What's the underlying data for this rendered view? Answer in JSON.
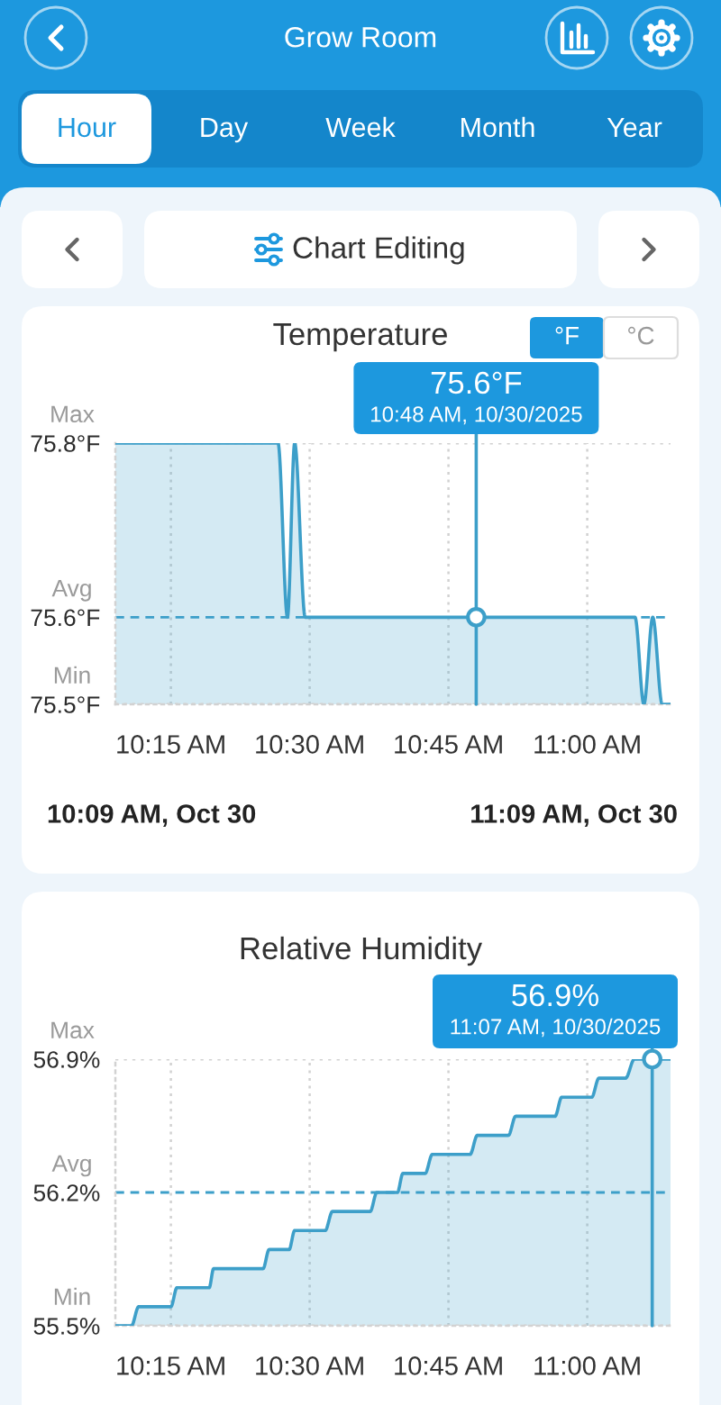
{
  "chart_data": [
    {
      "type": "other",
      "title": "Grow Room",
      "annotations": [
        "Hour",
        "Day",
        "Week",
        "Month",
        "Year",
        "Chart Editing"
      ]
    },
    {
      "type": "area",
      "title": "Temperature",
      "series": [
        {
          "type": "area",
          "color": "#3d9fc9",
          "x": [
            10.15,
            10.443,
            10.46,
            10.473,
            10.492,
            11.086,
            11.102,
            11.118,
            11.135,
            11.15
          ],
          "values": [
            75.8,
            75.8,
            75.6,
            75.8,
            75.6,
            75.6,
            75.5,
            75.6,
            75.5,
            75.5
          ]
        },
        {
          "type": "scatter",
          "color": "#3d9fc9",
          "marker": "circle",
          "x": [
            10.8
          ],
          "values": [
            75.6
          ]
        }
      ],
      "xlim": [
        10.15,
        11.15
      ],
      "xticks": [
        {
          "value": 10.25,
          "label": "10:15 AM"
        },
        {
          "value": 10.5,
          "label": "10:30 AM"
        },
        {
          "value": 10.75,
          "label": "10:45 AM"
        },
        {
          "value": 11.0,
          "label": "11:00 AM"
        }
      ],
      "ylim": [
        75.5,
        75.8
      ],
      "yticks": [
        {
          "value": 75.5,
          "label": "75.5°F"
        },
        {
          "value": 75.6,
          "label": "75.6°F"
        },
        {
          "value": 75.8,
          "label": "75.8°F"
        }
      ],
      "grid": "x",
      "ref_lines": [
        {
          "axis": "y",
          "value": 75.8,
          "label": "Max",
          "color": "#d2d2d2",
          "line_style": "dotted"
        },
        {
          "axis": "y",
          "value": 75.6,
          "label": "Avg",
          "color": "#3d9fc9",
          "line_style": "dashed"
        },
        {
          "axis": "y",
          "value": 75.5,
          "label": "Min",
          "color": "#d2d2d2",
          "line_style": "dotted"
        },
        {
          "axis": "x",
          "value": 10.8,
          "label": null,
          "color": "#3d9fc9",
          "line_style": "solid"
        }
      ],
      "annotations": [
        "75.6°F",
        "10:48 AM, 10/30/2025",
        "°F",
        "°C",
        "10:09 AM, Oct 30",
        "11:09 AM, Oct 30"
      ]
    },
    {
      "type": "area",
      "title": "Relative Humidity",
      "series": [
        {
          "type": "area",
          "color": "#3d9fc9",
          "x": [
            10.15,
            10.179,
            10.192,
            10.25,
            10.261,
            10.319,
            10.327,
            10.416,
            10.427,
            10.463,
            10.473,
            10.528,
            10.541,
            10.609,
            10.621,
            10.658,
            10.668,
            10.708,
            10.721,
            10.789,
            10.802,
            10.858,
            10.871,
            10.942,
            10.954,
            11.008,
            11.021,
            11.069,
            11.085,
            11.15
          ],
          "values": [
            55.5,
            55.5,
            55.6,
            55.6,
            55.7,
            55.7,
            55.8,
            55.8,
            55.9,
            55.9,
            56.0,
            56.0,
            56.1,
            56.1,
            56.2,
            56.2,
            56.3,
            56.3,
            56.4,
            56.4,
            56.5,
            56.5,
            56.6,
            56.6,
            56.7,
            56.7,
            56.8,
            56.8,
            56.9,
            56.9
          ]
        },
        {
          "type": "scatter",
          "color": "#3d9fc9",
          "marker": "circle",
          "x": [
            11.117
          ],
          "values": [
            56.9
          ]
        }
      ],
      "xlim": [
        10.15,
        11.15
      ],
      "xticks": [
        {
          "value": 10.25,
          "label": "10:15 AM"
        },
        {
          "value": 10.5,
          "label": "10:30 AM"
        },
        {
          "value": 10.75,
          "label": "10:45 AM"
        },
        {
          "value": 11.0,
          "label": "11:00 AM"
        }
      ],
      "ylim": [
        55.5,
        56.9
      ],
      "yticks": [
        {
          "value": 55.5,
          "label": "55.5%"
        },
        {
          "value": 56.2,
          "label": "56.2%"
        },
        {
          "value": 56.9,
          "label": "56.9%"
        }
      ],
      "grid": "x",
      "ref_lines": [
        {
          "axis": "y",
          "value": 56.9,
          "label": "Max",
          "color": "#d2d2d2",
          "line_style": "dotted"
        },
        {
          "axis": "y",
          "value": 56.2,
          "label": "Avg",
          "color": "#3d9fc9",
          "line_style": "dashed"
        },
        {
          "axis": "y",
          "value": 55.5,
          "label": "Min",
          "color": "#d2d2d2",
          "line_style": "dotted"
        },
        {
          "axis": "x",
          "value": 11.117,
          "label": null,
          "color": "#3d9fc9",
          "line_style": "solid"
        }
      ],
      "annotations": [
        "56.9%",
        "11:07 AM, 10/30/2025"
      ]
    }
  ]
}
